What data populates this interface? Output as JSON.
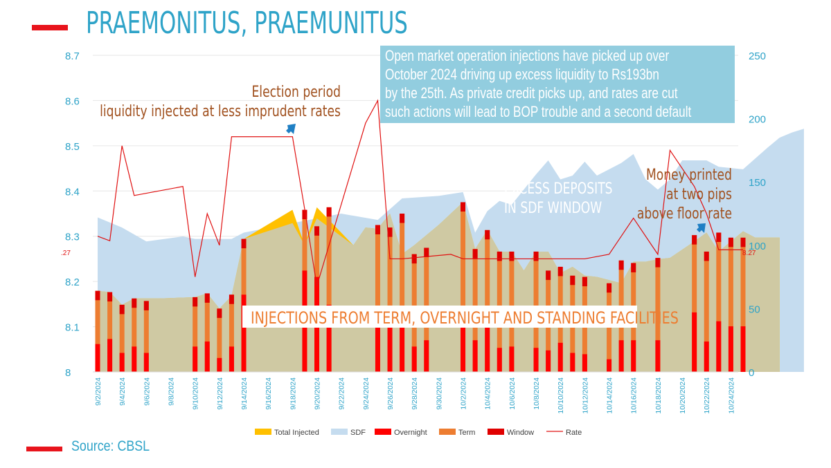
{
  "title": "PRAEMONITUS, PRAEMUNITUS",
  "source": "Source: CBSL",
  "callout": [
    "Open market operation injections have picked up over",
    "October 2024 driving up excess liquidity to Rs193bn",
    "by the 25th. As private credit picks up, and rates are cut",
    "such actions will lead to BOP trouble and a second default"
  ],
  "annotations": {
    "election_title": "Election period",
    "election_sub": "liquidity injected at less imprudent rates",
    "excess_1": "EXCESS DEPOSITS",
    "excess_2": "IN SDF WINDOW",
    "money_1": "Money printed",
    "money_2": "at two pips",
    "money_3": "above floor rate",
    "injections": "INJECTIONS FROM TERM, OVERNIGHT AND STANDING FACILITIES",
    "rate_left": ".27",
    "rate_right": "8.27"
  },
  "colors": {
    "title": "#2ea3c8",
    "accent_red": "#e8141c",
    "total_injected": "#ffc000",
    "sdf": "#c5dcef",
    "overnight": "#ff0000",
    "term": "#ed7d31",
    "window": "#e00000",
    "rate": "#e01010",
    "olive_fill": "#cfc9a3",
    "callout_bg": "#92cddf",
    "annotation_text": "#a0501e"
  },
  "chart_data": {
    "type": "bar",
    "left_axis": {
      "min": 8.0,
      "max": 8.7,
      "ticks": [
        "8.7",
        "8.6",
        "8.5",
        "8.4",
        "8.3",
        "8.2",
        "8.1",
        "8"
      ]
    },
    "right_axis": {
      "min": 0,
      "max": 250,
      "ticks": [
        "250",
        "200",
        "150",
        "100",
        "50",
        "0"
      ]
    },
    "x_ticks": [
      "9/2/2024",
      "9/4/2024",
      "9/6/2024",
      "9/8/2024",
      "9/10/2024",
      "9/12/2024",
      "9/14/2024",
      "9/16/2024",
      "9/18/2024",
      "9/20/2024",
      "9/22/2024",
      "9/24/2024",
      "9/26/2024",
      "9/28/2024",
      "9/30/2024",
      "10/2/2024",
      "10/4/2024",
      "10/6/2024",
      "10/8/2024",
      "10/10/2024",
      "10/12/2024",
      "10/14/2024",
      "10/16/2024",
      "10/18/2024",
      "10/20/2024",
      "10/22/2024",
      "10/24/2024"
    ],
    "legend": [
      "Total Injected",
      "SDF",
      "Overnight",
      "Term",
      "Window",
      "Rate"
    ],
    "legend_position": "bottom",
    "sdf_points": [
      [
        0,
        122
      ],
      [
        2,
        114
      ],
      [
        4,
        103
      ],
      [
        7,
        107
      ],
      [
        8,
        105
      ],
      [
        11,
        105
      ],
      [
        12,
        110
      ],
      [
        20,
        125
      ],
      [
        23,
        120
      ],
      [
        25,
        137
      ],
      [
        28,
        139
      ],
      [
        30,
        142
      ],
      [
        31,
        110
      ],
      [
        32,
        127
      ],
      [
        33,
        135
      ],
      [
        34,
        132
      ],
      [
        36,
        156
      ],
      [
        37,
        167
      ],
      [
        38,
        152
      ],
      [
        39,
        155
      ],
      [
        40,
        166
      ],
      [
        41,
        155
      ],
      [
        43,
        165
      ],
      [
        44,
        172
      ],
      [
        45,
        152
      ],
      [
        46,
        144
      ],
      [
        47,
        152
      ],
      [
        48,
        167
      ],
      [
        50,
        167
      ],
      [
        51,
        162
      ],
      [
        53,
        160
      ],
      [
        55,
        177
      ],
      [
        56,
        185
      ],
      [
        57,
        189
      ],
      [
        58,
        192
      ]
    ],
    "total_points": [
      [
        0,
        64
      ],
      [
        1,
        63
      ],
      [
        2,
        53
      ],
      [
        3,
        58
      ],
      [
        5,
        58
      ],
      [
        8,
        59
      ],
      [
        9,
        62
      ],
      [
        10,
        50
      ],
      [
        11,
        60
      ],
      [
        12,
        105
      ],
      [
        16,
        128
      ],
      [
        17,
        100
      ],
      [
        18,
        130
      ],
      [
        21,
        100
      ],
      [
        22,
        114
      ],
      [
        23,
        113
      ],
      [
        24,
        125
      ],
      [
        25,
        93
      ],
      [
        26,
        100
      ],
      [
        28,
        116
      ],
      [
        30,
        134
      ],
      [
        31,
        97
      ],
      [
        32,
        112
      ],
      [
        33,
        95
      ],
      [
        34,
        95
      ],
      [
        35,
        80
      ],
      [
        36,
        95
      ],
      [
        37,
        95
      ],
      [
        38,
        78
      ],
      [
        39,
        83
      ],
      [
        40,
        76
      ],
      [
        41,
        75
      ],
      [
        43,
        70
      ],
      [
        44,
        87
      ],
      [
        45,
        87
      ],
      [
        46,
        89
      ],
      [
        47,
        90
      ],
      [
        49,
        103
      ],
      [
        50,
        110
      ],
      [
        51,
        95
      ],
      [
        53,
        111
      ],
      [
        54,
        106
      ],
      [
        55,
        106
      ],
      [
        56,
        106
      ]
    ],
    "bars": [
      {
        "i": 0,
        "total": 64,
        "red": 22
      },
      {
        "i": 1,
        "total": 63,
        "red": 26
      },
      {
        "i": 2,
        "total": 53,
        "red": 15
      },
      {
        "i": 3,
        "total": 58,
        "red": 20
      },
      {
        "i": 4,
        "total": 56,
        "red": 15
      },
      {
        "i": 8,
        "total": 59,
        "red": 20
      },
      {
        "i": 9,
        "total": 62,
        "red": 24
      },
      {
        "i": 10,
        "total": 50,
        "red": 11
      },
      {
        "i": 11,
        "total": 61,
        "red": 20
      },
      {
        "i": 12,
        "total": 105,
        "red": 61
      },
      {
        "i": 17,
        "total": 128,
        "red": 80
      },
      {
        "i": 18,
        "total": 115,
        "red": 75
      },
      {
        "i": 19,
        "total": 130,
        "red": 53
      },
      {
        "i": 23,
        "total": 116,
        "red": 36
      },
      {
        "i": 24,
        "total": 114,
        "red": 36
      },
      {
        "i": 25,
        "total": 125,
        "red": 36
      },
      {
        "i": 26,
        "total": 93,
        "red": 20
      },
      {
        "i": 27,
        "total": 98,
        "red": 25
      },
      {
        "i": 30,
        "total": 134,
        "red": 40
      },
      {
        "i": 31,
        "total": 97,
        "red": 25
      },
      {
        "i": 32,
        "total": 112,
        "red": 36
      },
      {
        "i": 33,
        "total": 95,
        "red": 19
      },
      {
        "i": 34,
        "total": 95,
        "red": 20
      },
      {
        "i": 36,
        "total": 95,
        "red": 19
      },
      {
        "i": 37,
        "total": 80,
        "red": 17
      },
      {
        "i": 38,
        "total": 83,
        "red": 23
      },
      {
        "i": 39,
        "total": 76,
        "red": 15
      },
      {
        "i": 40,
        "total": 75,
        "red": 14
      },
      {
        "i": 42,
        "total": 70,
        "red": 10
      },
      {
        "i": 43,
        "total": 88,
        "red": 25
      },
      {
        "i": 44,
        "total": 86,
        "red": 25
      },
      {
        "i": 46,
        "total": 90,
        "red": 25
      },
      {
        "i": 49,
        "total": 108,
        "red": 47
      },
      {
        "i": 50,
        "total": 95,
        "red": 24
      },
      {
        "i": 51,
        "total": 110,
        "red": 40
      },
      {
        "i": 52,
        "total": 106,
        "red": 36
      },
      {
        "i": 53,
        "total": 106,
        "red": 36
      }
    ],
    "bar_index_x": [
      142,
      160,
      177,
      195,
      212,
      230,
      247,
      265,
      282,
      299,
      316,
      333,
      351,
      368,
      385,
      403,
      420,
      437,
      454,
      472,
      489,
      506,
      524,
      541,
      559,
      576,
      593,
      611,
      628,
      645,
      663,
      680,
      697,
      714,
      731,
      748,
      766,
      783,
      800,
      818,
      835,
      852,
      870,
      887,
      904,
      922,
      939,
      956,
      974,
      991,
      1009,
      1026,
      1044,
      1061
    ],
    "rate_points": [
      [
        0,
        8.3
      ],
      [
        1,
        8.29
      ],
      [
        2,
        8.5
      ],
      [
        3,
        8.39
      ],
      [
        7,
        8.41
      ],
      [
        8,
        8.21
      ],
      [
        9,
        8.35
      ],
      [
        10,
        8.28
      ],
      [
        11,
        8.52
      ],
      [
        16,
        8.52
      ],
      [
        17,
        8.36
      ],
      [
        18,
        8.19
      ],
      [
        22,
        8.55
      ],
      [
        23,
        8.6
      ],
      [
        24,
        8.25
      ],
      [
        25,
        8.25
      ],
      [
        29,
        8.26
      ],
      [
        30,
        8.25
      ],
      [
        40,
        8.25
      ],
      [
        42,
        8.26
      ],
      [
        44,
        8.34
      ],
      [
        46,
        8.26
      ],
      [
        47,
        8.49
      ],
      [
        49,
        8.41
      ],
      [
        50,
        8.35
      ],
      [
        51,
        8.27
      ],
      [
        53,
        8.27
      ]
    ]
  }
}
